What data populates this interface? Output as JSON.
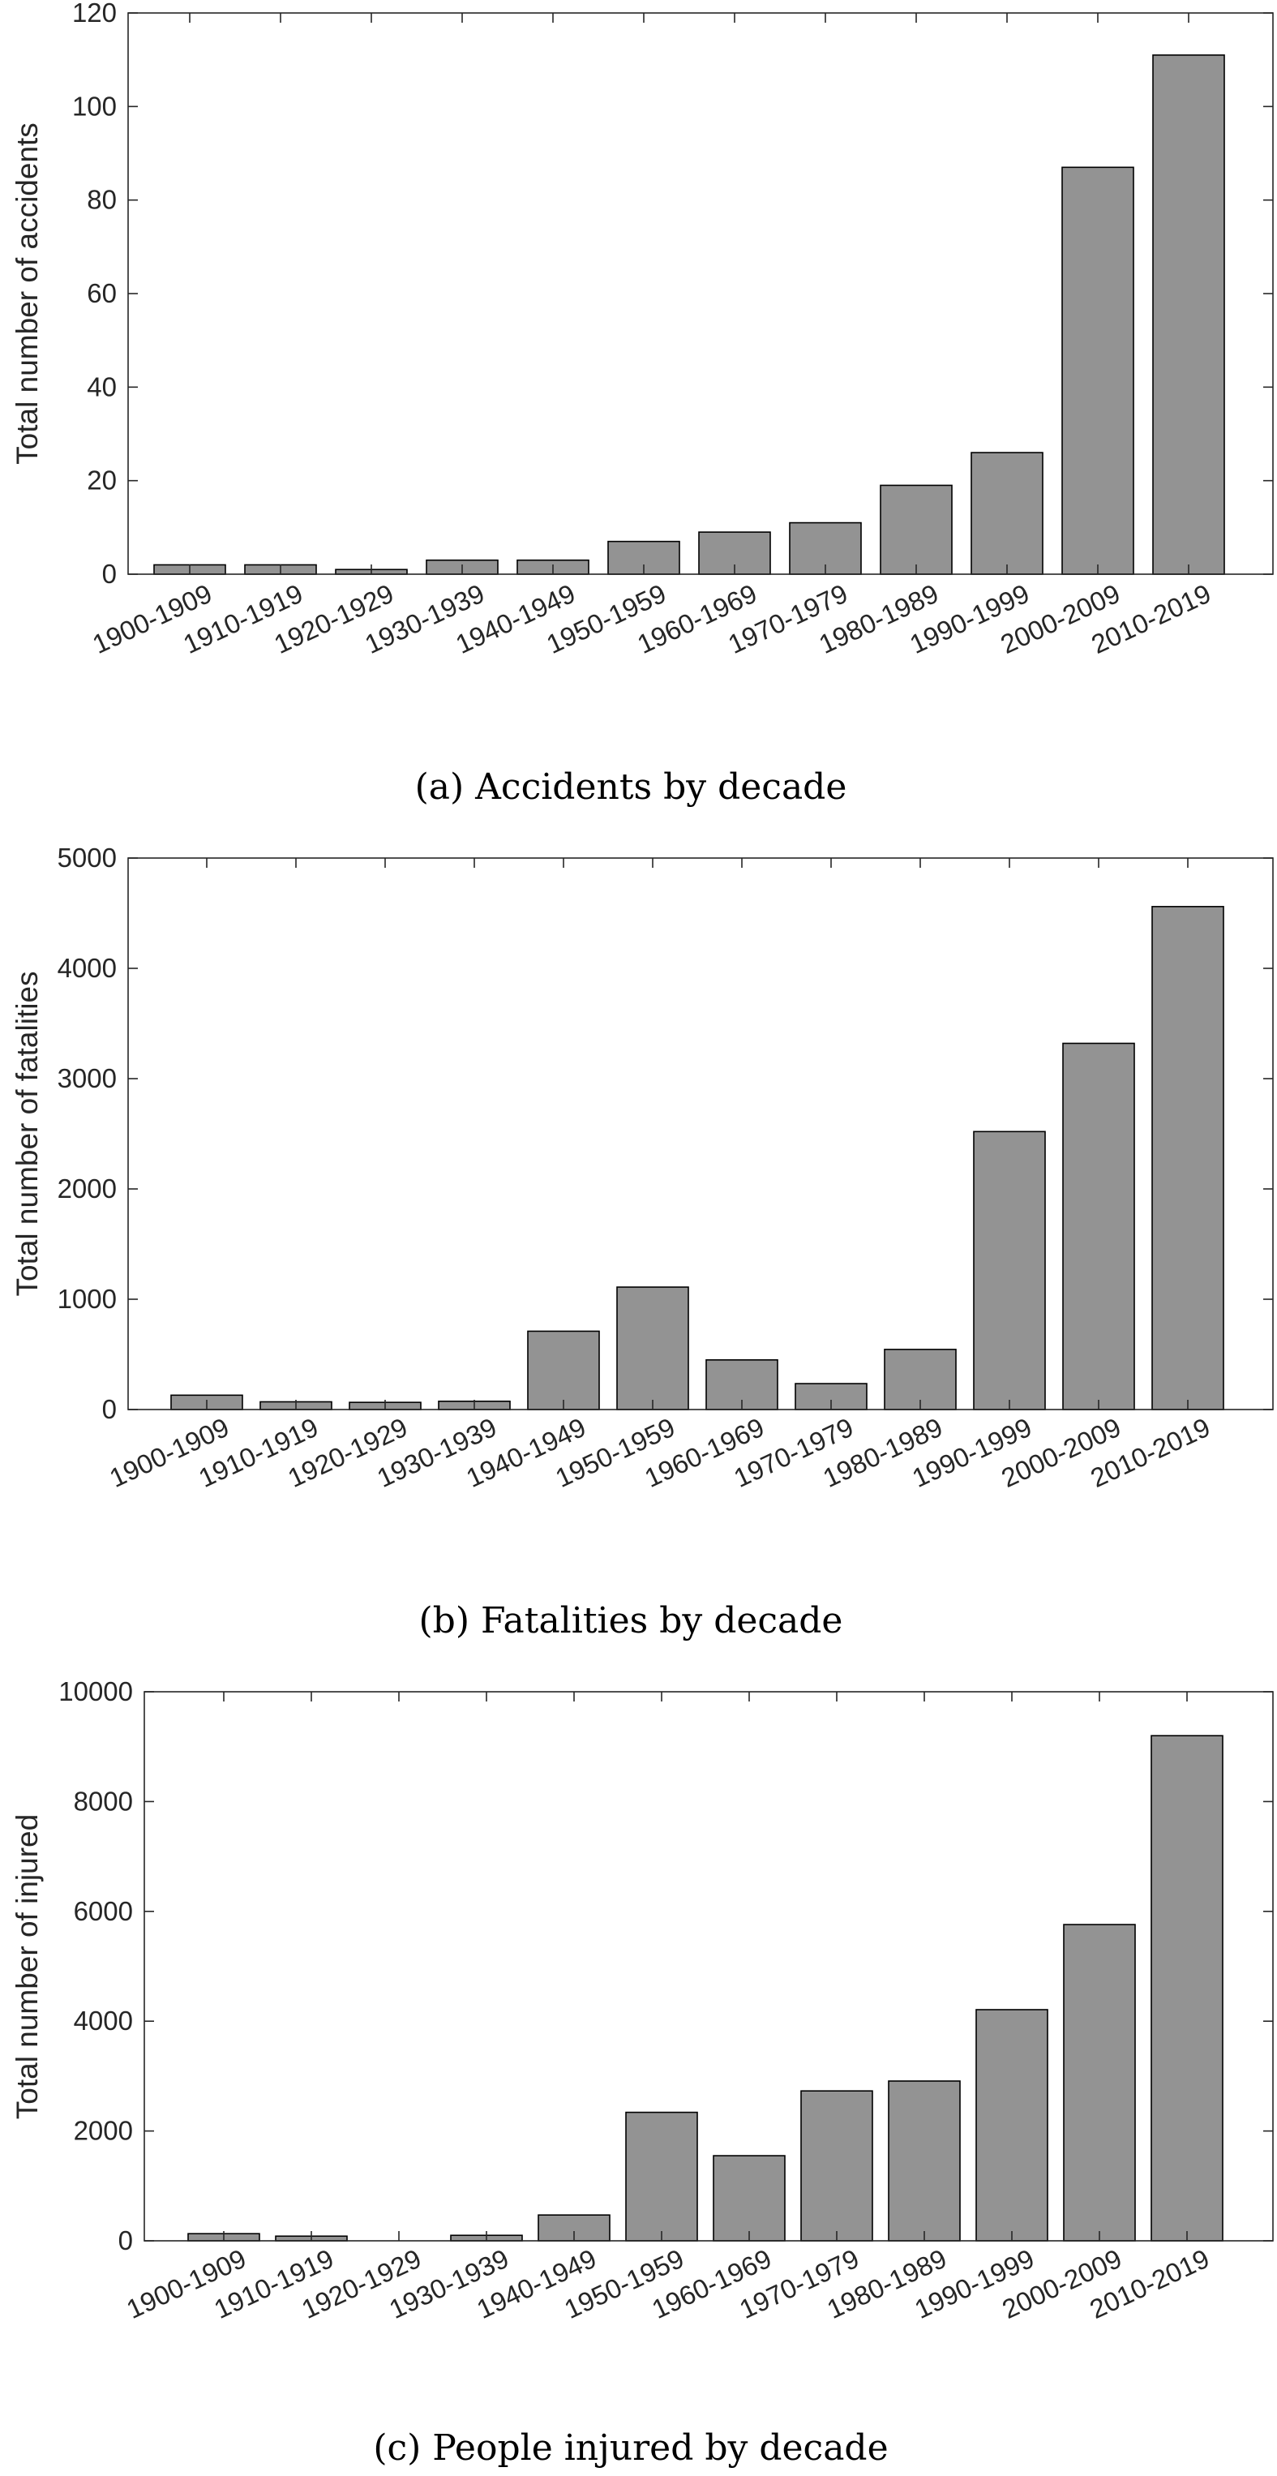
{
  "chart_data": [
    {
      "type": "bar",
      "categories": [
        "1900-1909",
        "1910-1919",
        "1920-1929",
        "1930-1939",
        "1940-1949",
        "1950-1959",
        "1960-1969",
        "1970-1979",
        "1980-1989",
        "1990-1999",
        "2000-2009",
        "2010-2019"
      ],
      "values": [
        2,
        2,
        1,
        3,
        3,
        7,
        9,
        11,
        19,
        26,
        87,
        111
      ],
      "ylabel": "Total number of accidents",
      "ylim": [
        0,
        120
      ],
      "yticks": [
        "0",
        "20",
        "40",
        "60",
        "80",
        "100",
        "120"
      ],
      "caption": "(a) Accidents by decade",
      "bar_color": "#939393",
      "grid": false
    },
    {
      "type": "bar",
      "categories": [
        "1900-1909",
        "1910-1919",
        "1920-1929",
        "1930-1939",
        "1940-1949",
        "1950-1959",
        "1960-1969",
        "1970-1979",
        "1980-1989",
        "1990-1999",
        "2000-2009",
        "2010-2019"
      ],
      "values": [
        130,
        70,
        65,
        75,
        710,
        1110,
        450,
        235,
        545,
        2520,
        3320,
        4560
      ],
      "ylabel": "Total number of fatalities",
      "ylim": [
        0,
        5000
      ],
      "yticks": [
        "0",
        "1000",
        "2000",
        "3000",
        "4000",
        "5000"
      ],
      "caption": "(b) Fatalities by decade",
      "bar_color": "#939393",
      "grid": false
    },
    {
      "type": "bar",
      "categories": [
        "1900-1909",
        "1910-1919",
        "1920-1929",
        "1930-1939",
        "1940-1949",
        "1950-1959",
        "1960-1969",
        "1970-1979",
        "1980-1989",
        "1990-1999",
        "2000-2009",
        "2010-2019"
      ],
      "values": [
        130,
        85,
        0,
        100,
        470,
        2340,
        1550,
        2730,
        2910,
        4210,
        5760,
        9200
      ],
      "ylabel": "Total number of injured",
      "ylim": [
        0,
        10000
      ],
      "yticks": [
        "0",
        "2000",
        "4000",
        "6000",
        "8000",
        "10000"
      ],
      "caption": "(c) People injured by decade",
      "bar_color": "#939393",
      "grid": false
    }
  ]
}
